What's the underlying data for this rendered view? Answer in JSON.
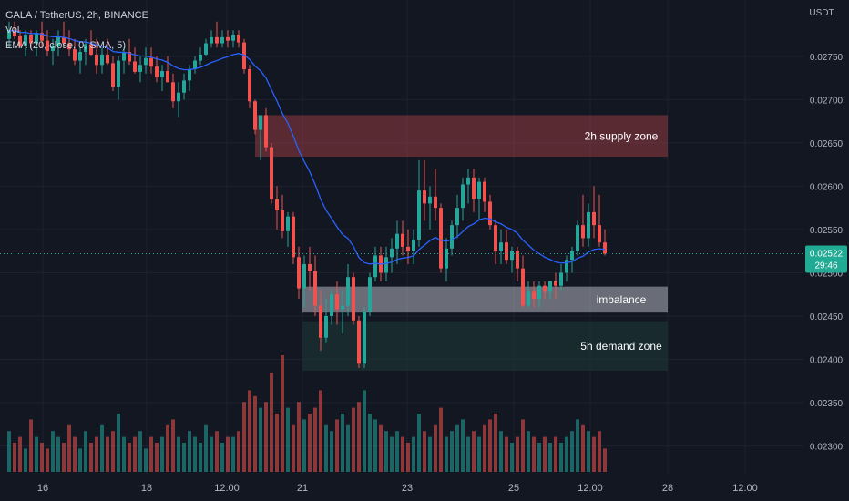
{
  "chart_data": {
    "type": "candlestick",
    "symbol": "GALA / TetherUS, 2h, BINANCE",
    "volume_label": "Vol",
    "indicator_label": "EMA (20, close, 0, SMA, 5)",
    "currency": "USDT",
    "ylim": [
      0.02268,
      0.02815
    ],
    "y_ticks": [
      "0.02300",
      "0.02350",
      "0.02400",
      "0.02450",
      "0.02500",
      "0.02550",
      "0.02600",
      "0.02650",
      "0.02700",
      "0.02750"
    ],
    "x_ticks": [
      "16",
      "18",
      "12:00",
      "21",
      "23",
      "25",
      "12:00",
      "28",
      "12:00"
    ],
    "last_price": "0.02522",
    "countdown": "29:46",
    "grid": true,
    "colors": {
      "background": "#131722",
      "grid": "#1e2230",
      "up": "#26a69a",
      "down": "#ef5350",
      "ema": "#2962ff",
      "text": "#b2b5be",
      "price_tag": "#22ab94",
      "supply_zone": "#b2424a",
      "imbalance_zone": "#b2b5be",
      "demand_zone": "#1e3a36"
    },
    "zones": [
      {
        "label": "2h supply zone",
        "price_top": 0.02682,
        "price_bottom": 0.02634,
        "start": 2.3,
        "end": 5.9,
        "type": "supply"
      },
      {
        "label": "imbalance",
        "price_top": 0.02484,
        "price_bottom": 0.02454,
        "start": 2.7,
        "end": 5.9,
        "type": "imbalance"
      },
      {
        "label": "5h demand zone",
        "price_top": 0.02444,
        "price_bottom": 0.02387,
        "start": 2.7,
        "end": 5.9,
        "type": "demand"
      }
    ],
    "candles_ohlc": [
      [
        0.0277,
        0.0279,
        0.0276,
        0.0278
      ],
      [
        0.0278,
        0.0279,
        0.0277,
        0.02773
      ],
      [
        0.02773,
        0.0278,
        0.0276,
        0.02762
      ],
      [
        0.02762,
        0.0278,
        0.0275,
        0.02775
      ],
      [
        0.02775,
        0.0278,
        0.0276,
        0.02765
      ],
      [
        0.02765,
        0.0278,
        0.0275,
        0.02777
      ],
      [
        0.02777,
        0.0279,
        0.0276,
        0.02768
      ],
      [
        0.02768,
        0.0278,
        0.0275,
        0.02756
      ],
      [
        0.02756,
        0.0277,
        0.0274,
        0.02762
      ],
      [
        0.02762,
        0.0278,
        0.0275,
        0.02772
      ],
      [
        0.02772,
        0.0279,
        0.0276,
        0.02765
      ],
      [
        0.02765,
        0.0278,
        0.0275,
        0.02758
      ],
      [
        0.02758,
        0.0277,
        0.0274,
        0.02745
      ],
      [
        0.02745,
        0.0276,
        0.0273,
        0.02755
      ],
      [
        0.02755,
        0.0277,
        0.0274,
        0.02764
      ],
      [
        0.02764,
        0.0278,
        0.0275,
        0.02752
      ],
      [
        0.02752,
        0.0277,
        0.0273,
        0.0274
      ],
      [
        0.0274,
        0.0276,
        0.0273,
        0.02752
      ],
      [
        0.02752,
        0.0277,
        0.0274,
        0.02742
      ],
      [
        0.02742,
        0.0275,
        0.0271,
        0.02715
      ],
      [
        0.02715,
        0.0275,
        0.027,
        0.02745
      ],
      [
        0.02745,
        0.0276,
        0.0273,
        0.02755
      ],
      [
        0.02755,
        0.0277,
        0.0274,
        0.02744
      ],
      [
        0.02744,
        0.0276,
        0.0273,
        0.02732
      ],
      [
        0.02732,
        0.0275,
        0.0272,
        0.0274
      ],
      [
        0.0274,
        0.0276,
        0.0273,
        0.02748
      ],
      [
        0.02748,
        0.0276,
        0.0273,
        0.02738
      ],
      [
        0.02738,
        0.0275,
        0.0272,
        0.02726
      ],
      [
        0.02726,
        0.0274,
        0.0271,
        0.02733
      ],
      [
        0.02733,
        0.0275,
        0.0272,
        0.0272
      ],
      [
        0.0272,
        0.0273,
        0.0269,
        0.02698
      ],
      [
        0.02698,
        0.0272,
        0.0268,
        0.02708
      ],
      [
        0.02708,
        0.0273,
        0.027,
        0.02722
      ],
      [
        0.02722,
        0.0274,
        0.0271,
        0.02735
      ],
      [
        0.02735,
        0.0275,
        0.0273,
        0.02745
      ],
      [
        0.02745,
        0.0276,
        0.0274,
        0.02752
      ],
      [
        0.02752,
        0.0277,
        0.0275,
        0.02765
      ],
      [
        0.02765,
        0.0278,
        0.0276,
        0.02772
      ],
      [
        0.02772,
        0.0279,
        0.0276,
        0.02765
      ],
      [
        0.02765,
        0.0278,
        0.0276,
        0.02772
      ],
      [
        0.02772,
        0.0278,
        0.0276,
        0.02768
      ],
      [
        0.02768,
        0.0278,
        0.0276,
        0.02775
      ],
      [
        0.02775,
        0.0278,
        0.0276,
        0.02766
      ],
      [
        0.02766,
        0.0277,
        0.0273,
        0.02735
      ],
      [
        0.02735,
        0.0274,
        0.0269,
        0.02698
      ],
      [
        0.02698,
        0.027,
        0.0266,
        0.02665
      ],
      [
        0.02665,
        0.0268,
        0.0263,
        0.02682
      ],
      [
        0.02682,
        0.0269,
        0.0264,
        0.02645
      ],
      [
        0.02645,
        0.0265,
        0.0258,
        0.02585
      ],
      [
        0.02585,
        0.026,
        0.0255,
        0.02572
      ],
      [
        0.02572,
        0.0259,
        0.0254,
        0.02548
      ],
      [
        0.02548,
        0.0257,
        0.0253,
        0.02565
      ],
      [
        0.02565,
        0.0257,
        0.0251,
        0.02518
      ],
      [
        0.02518,
        0.0253,
        0.0247,
        0.02482
      ],
      [
        0.02482,
        0.0252,
        0.0246,
        0.0251
      ],
      [
        0.0251,
        0.0253,
        0.0248,
        0.02502
      ],
      [
        0.02502,
        0.0252,
        0.0245,
        0.02462
      ],
      [
        0.02462,
        0.0248,
        0.0241,
        0.02425
      ],
      [
        0.02425,
        0.0247,
        0.0242,
        0.0245
      ],
      [
        0.0245,
        0.0248,
        0.0244,
        0.02475
      ],
      [
        0.02475,
        0.0249,
        0.0244,
        0.02458
      ],
      [
        0.02458,
        0.0248,
        0.0243,
        0.02462
      ],
      [
        0.02462,
        0.0251,
        0.0245,
        0.02495
      ],
      [
        0.02495,
        0.025,
        0.0244,
        0.02445
      ],
      [
        0.02445,
        0.0245,
        0.0239,
        0.02395
      ],
      [
        0.02395,
        0.0246,
        0.0239,
        0.02455
      ],
      [
        0.02455,
        0.025,
        0.0245,
        0.02495
      ],
      [
        0.02495,
        0.0253,
        0.0249,
        0.0252
      ],
      [
        0.0252,
        0.0253,
        0.0249,
        0.025
      ],
      [
        0.025,
        0.0253,
        0.0249,
        0.02518
      ],
      [
        0.02518,
        0.0254,
        0.025,
        0.02528
      ],
      [
        0.02528,
        0.0256,
        0.0251,
        0.02545
      ],
      [
        0.02545,
        0.0256,
        0.0252,
        0.0253
      ],
      [
        0.0253,
        0.0255,
        0.0251,
        0.02525
      ],
      [
        0.02525,
        0.0255,
        0.0251,
        0.02538
      ],
      [
        0.02538,
        0.0263,
        0.0253,
        0.02595
      ],
      [
        0.02595,
        0.0263,
        0.0256,
        0.0258
      ],
      [
        0.0258,
        0.026,
        0.0255,
        0.02588
      ],
      [
        0.02588,
        0.0262,
        0.0256,
        0.02575
      ],
      [
        0.02575,
        0.0258,
        0.025,
        0.02505
      ],
      [
        0.02505,
        0.0254,
        0.0249,
        0.02528
      ],
      [
        0.02528,
        0.0256,
        0.0252,
        0.02555
      ],
      [
        0.02555,
        0.0259,
        0.0254,
        0.02575
      ],
      [
        0.02575,
        0.0261,
        0.0256,
        0.02602
      ],
      [
        0.02602,
        0.0262,
        0.0258,
        0.0261
      ],
      [
        0.0261,
        0.0262,
        0.0257,
        0.02585
      ],
      [
        0.02585,
        0.0261,
        0.0256,
        0.02605
      ],
      [
        0.02605,
        0.0261,
        0.0257,
        0.02582
      ],
      [
        0.02582,
        0.0259,
        0.0255,
        0.02555
      ],
      [
        0.02555,
        0.0256,
        0.0251,
        0.02525
      ],
      [
        0.02525,
        0.0255,
        0.0251,
        0.02535
      ],
      [
        0.02535,
        0.0255,
        0.0251,
        0.02515
      ],
      [
        0.02515,
        0.0253,
        0.025,
        0.02525
      ],
      [
        0.02525,
        0.0253,
        0.0249,
        0.02505
      ],
      [
        0.02505,
        0.0252,
        0.0246,
        0.02462
      ],
      [
        0.02462,
        0.0249,
        0.0246,
        0.02478
      ],
      [
        0.02478,
        0.0249,
        0.0246,
        0.0247
      ],
      [
        0.0247,
        0.0249,
        0.0246,
        0.02485
      ],
      [
        0.02485,
        0.0249,
        0.0247,
        0.02478
      ],
      [
        0.02478,
        0.0249,
        0.0247,
        0.0249
      ],
      [
        0.0249,
        0.025,
        0.0247,
        0.02485
      ],
      [
        0.02485,
        0.0251,
        0.0248,
        0.025
      ],
      [
        0.025,
        0.0252,
        0.0249,
        0.02515
      ],
      [
        0.02515,
        0.0253,
        0.025,
        0.02525
      ],
      [
        0.02525,
        0.0256,
        0.0252,
        0.02555
      ],
      [
        0.02555,
        0.0259,
        0.0253,
        0.0254
      ],
      [
        0.0254,
        0.0258,
        0.0253,
        0.0257
      ],
      [
        0.0257,
        0.026,
        0.0254,
        0.02555
      ],
      [
        0.02555,
        0.0259,
        0.0253,
        0.02535
      ],
      [
        0.02535,
        0.0255,
        0.0252,
        0.02522
      ]
    ],
    "volume_relative": [
      0.35,
      0.25,
      0.3,
      0.2,
      0.45,
      0.3,
      0.25,
      0.2,
      0.35,
      0.3,
      0.25,
      0.4,
      0.3,
      0.2,
      0.35,
      0.25,
      0.3,
      0.4,
      0.3,
      0.35,
      0.5,
      0.3,
      0.25,
      0.3,
      0.35,
      0.2,
      0.3,
      0.25,
      0.3,
      0.4,
      0.45,
      0.3,
      0.25,
      0.35,
      0.3,
      0.25,
      0.4,
      0.3,
      0.35,
      0.25,
      0.3,
      0.3,
      0.35,
      0.6,
      0.7,
      0.65,
      0.55,
      0.6,
      0.85,
      0.5,
      1.0,
      0.55,
      0.4,
      0.6,
      0.45,
      0.5,
      0.55,
      0.7,
      0.4,
      0.35,
      0.45,
      0.5,
      0.4,
      0.55,
      0.6,
      0.7,
      0.5,
      0.45,
      0.4,
      0.35,
      0.3,
      0.35,
      0.3,
      0.25,
      0.3,
      0.5,
      0.35,
      0.3,
      0.4,
      0.55,
      0.3,
      0.35,
      0.4,
      0.45,
      0.3,
      0.35,
      0.3,
      0.4,
      0.45,
      0.5,
      0.35,
      0.3,
      0.25,
      0.3,
      0.45,
      0.35,
      0.3,
      0.25,
      0.3,
      0.25,
      0.3,
      0.25,
      0.3,
      0.35,
      0.45,
      0.4,
      0.35,
      0.3,
      0.35,
      0.2
    ]
  }
}
